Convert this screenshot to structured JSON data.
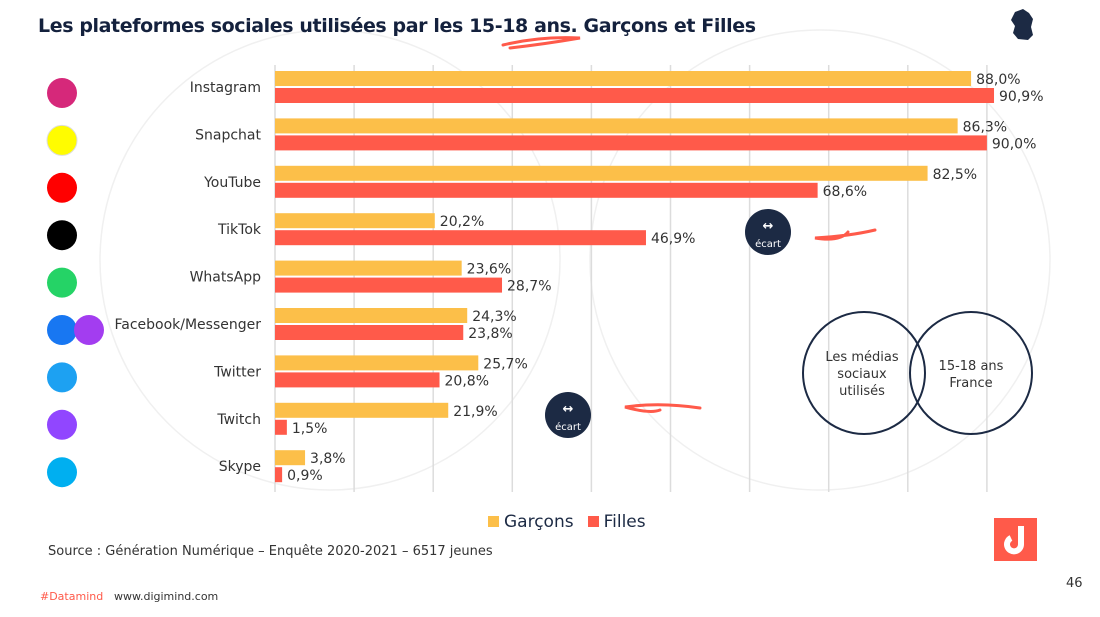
{
  "title": "Les plateformes sociales utilisées par les 15-18 ans. Garçons et Filles",
  "colors": {
    "garcons": "#fcbf49",
    "filles": "#ff5a4a",
    "dark": "#1c2a44"
  },
  "chart_data": {
    "type": "bar",
    "orientation": "horizontal",
    "categories": [
      "Instagram",
      "Snapchat",
      "YouTube",
      "TikTok",
      "WhatsApp",
      "Facebook/Messenger",
      "Twitter",
      "Twitch",
      "Skype"
    ],
    "series": [
      {
        "name": "Garçons",
        "values": [
          88.0,
          86.3,
          82.5,
          20.2,
          23.6,
          24.3,
          25.7,
          21.9,
          3.8
        ],
        "labels": [
          "88,0%",
          "86,3%",
          "82,5%",
          "20,2%",
          "23,6%",
          "24,3%",
          "25,7%",
          "21,9%",
          "3,8%"
        ]
      },
      {
        "name": "Filles",
        "values": [
          90.9,
          90.0,
          68.6,
          46.9,
          28.7,
          23.8,
          20.8,
          1.5,
          0.9
        ],
        "labels": [
          "90,9%",
          "90,0%",
          "68,6%",
          "46,9%",
          "28,7%",
          "23,8%",
          "20,8%",
          "1,5%",
          "0,9%"
        ]
      }
    ],
    "xlim": [
      0,
      90
    ],
    "grid": true,
    "legend": "bottom"
  },
  "icons": [
    "instagram-icon",
    "snapchat-icon",
    "youtube-icon",
    "tiktok-icon",
    "whatsapp-icon",
    "facebook-messenger-icon",
    "twitter-icon",
    "twitch-icon",
    "skype-icon"
  ],
  "badge_label": "écart",
  "venn": {
    "left": "Les médias sociaux utilisés",
    "right": "15-18 ans France"
  },
  "legend": {
    "garcons": "Garçons",
    "filles": "Filles"
  },
  "source": "Source : Génération Numérique – Enquête 2020-2021 – 6517 jeunes",
  "footer": {
    "tag": "#Datamind",
    "url": "www.digimind.com",
    "page": "46"
  }
}
